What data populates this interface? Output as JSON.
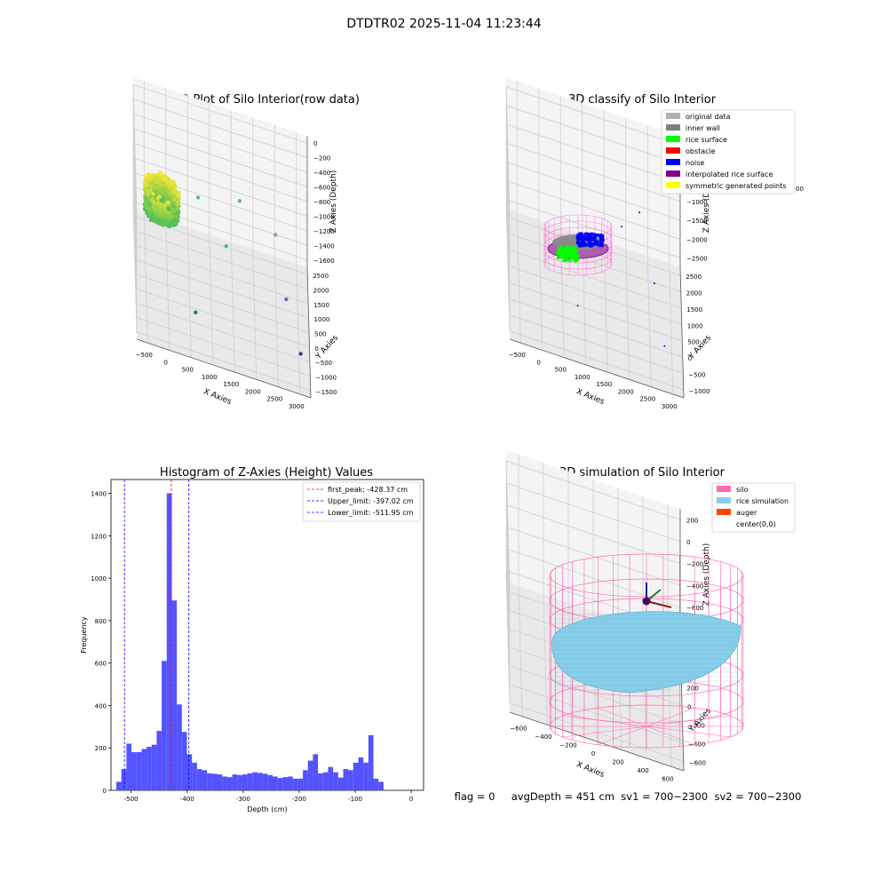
{
  "suptitle": "DTDTR02 2025-11-04 11:23:44",
  "status_text": "flag = 0     avgDepth = 451 cm  sv1 = 700~2300  sv2 = 700~2300",
  "colors": {
    "pane": "#f2f2f2",
    "grid": "#cfcfcf",
    "rice_surface": "#00ff00",
    "inner_wall": "#808080",
    "noise": "#0000ff",
    "interpolated": "#800080",
    "obstacle": "#ff0000",
    "original": "#b0b0b0",
    "symmetric": "#ffff00",
    "hist_bar": "#4a4aff",
    "silo": "#ff69b4",
    "rice_sim": "#87ceeb",
    "auger": "#ff4500"
  },
  "chart_data": [
    {
      "type": "scatter",
      "projection": "3d",
      "title": "3D Plot of Silo Interior(row data)",
      "xlabel": "X Axies",
      "ylabel": "Y Axies",
      "zlabel": "Z Axies (Depth)",
      "x_ticks": [
        "−500",
        "0",
        "500",
        "1000",
        "1500",
        "2000",
        "2500",
        "3000"
      ],
      "y_ticks": [
        "−1500",
        "−1000",
        "−500",
        "0",
        "500",
        "1000",
        "1500",
        "2000",
        "2500"
      ],
      "z_ticks": [
        "0",
        "−200",
        "−400",
        "−600",
        "−800",
        "−1000",
        "−1200",
        "−1400",
        "−1600"
      ],
      "xlim": [
        -600,
        3200
      ],
      "ylim": [
        -1600,
        2700
      ],
      "zlim": [
        -1700,
        50
      ],
      "cluster": {
        "x_range": [
          -400,
          350
        ],
        "y_range": [
          -450,
          450
        ],
        "z_range": [
          -560,
          -200
        ]
      },
      "outliers": [
        {
          "x": 800,
          "y": 1800,
          "z": -900,
          "color": "#5fb89a"
        },
        {
          "x": 1700,
          "y": 1400,
          "z": -600,
          "color": "#58b6a0"
        },
        {
          "x": 2500,
          "y": 2300,
          "z": -1250,
          "color": "#7aa9b6"
        },
        {
          "x": 1400,
          "y": 1000,
          "z": -1100,
          "color": "#4db3a5"
        },
        {
          "x": 700,
          "y": -800,
          "z": -1400,
          "color": "#2f6f8c"
        },
        {
          "x": 2700,
          "y": 400,
          "z": -1300,
          "color": "#6b6fb0"
        },
        {
          "x": 3000,
          "y": -500,
          "z": -1600,
          "color": "#3b3f86"
        }
      ],
      "grid": true
    },
    {
      "type": "scatter",
      "projection": "3d",
      "title": "3D classify of Silo Interior",
      "xlabel": "X Axies",
      "ylabel": "Y Axies",
      "zlabel": "Z Axies (Depth)",
      "x_ticks": [
        "−500",
        "0",
        "500",
        "1000",
        "1500",
        "2000",
        "2500",
        "3000"
      ],
      "y_ticks": [
        "−1000",
        "−500",
        "0",
        "500",
        "1000",
        "1500",
        "2000",
        "2500"
      ],
      "z_ticks": [
        "500",
        "0",
        "−500",
        "−1000",
        "−1500",
        "−2000",
        "−2500"
      ],
      "z_ticks_partial": [
        "00"
      ],
      "xlim": [
        -600,
        3200
      ],
      "ylim": [
        -1100,
        2700
      ],
      "zlim": [
        -2700,
        900
      ],
      "legend": [
        {
          "label": "original data",
          "color": "#b0b0b0"
        },
        {
          "label": "inner wall",
          "color": "#808080"
        },
        {
          "label": "rice surface",
          "color": "#00ff00"
        },
        {
          "label": "obstacle",
          "color": "#ff0000"
        },
        {
          "label": "noise",
          "color": "#0000ff"
        },
        {
          "label": "interpolated rice surface",
          "color": "#800080"
        },
        {
          "label": "symmetric generated points",
          "color": "#ffff00"
        }
      ],
      "legend_loc": "upper right",
      "noise_points": [
        {
          "x": 2300,
          "y": 2300,
          "z": -1200
        },
        {
          "x": 1900,
          "y": 1600,
          "z": -1100
        },
        {
          "x": 2600,
          "y": 900,
          "z": -1700
        },
        {
          "x": 900,
          "y": -300,
          "z": -1900
        },
        {
          "x": 2800,
          "y": -200,
          "z": -2300
        }
      ],
      "grid": true
    },
    {
      "type": "bar",
      "title": "Histogram of Z-Axies (Height) Values",
      "xlabel": "Depth (cm)",
      "ylabel": "Frequency",
      "xlim": [
        -536,
        22
      ],
      "ylim": [
        0,
        1465
      ],
      "x_ticks": [
        -500,
        -400,
        -300,
        -200,
        -100,
        0
      ],
      "y_ticks": [
        0,
        200,
        400,
        600,
        800,
        1000,
        1200,
        1400
      ],
      "bin_start": -526.5,
      "bin_width": 9.0,
      "values": [
        40,
        100,
        220,
        180,
        180,
        195,
        205,
        215,
        280,
        610,
        1400,
        895,
        405,
        275,
        170,
        130,
        100,
        95,
        80,
        78,
        75,
        65,
        62,
        75,
        72,
        75,
        80,
        85,
        82,
        78,
        72,
        65,
        58,
        62,
        65,
        55,
        55,
        95,
        140,
        170,
        80,
        85,
        110,
        85,
        60,
        100,
        95,
        130,
        155,
        130,
        260,
        55,
        40
      ],
      "vlines": [
        {
          "x": -428.37,
          "color": "#ff0000",
          "label": "first_peak: -428.37 cm"
        },
        {
          "x": -397.02,
          "color": "#0000ff",
          "label": "Upper_limit: -397.02 cm"
        },
        {
          "x": -511.95,
          "color": "#0000ff",
          "label": "Lower_limit: -511.95 cm"
        }
      ],
      "legend_loc": "upper right"
    },
    {
      "type": "scatter",
      "projection": "3d",
      "title": "3D simulation of Silo Interior",
      "xlabel": "X Axies",
      "ylabel": "Y Axies",
      "zlabel": "Z Axies (Depth)",
      "x_ticks": [
        "−600",
        "−400",
        "−200",
        "0",
        "200",
        "400",
        "600"
      ],
      "y_ticks": [
        "−600",
        "−400",
        "−200",
        "0",
        "200",
        "400",
        "600"
      ],
      "z_ticks": [
        "200",
        "0",
        "−200",
        "−400",
        "−600",
        "−800"
      ],
      "xlim": [
        -700,
        700
      ],
      "ylim": [
        -700,
        700
      ],
      "zlim": [
        -950,
        300
      ],
      "silo_radius": 650,
      "silo_top": 200,
      "silo_bottom": -900,
      "rice_surface_depth": -451,
      "legend": [
        {
          "label": "silo",
          "color": "#ff69b4"
        },
        {
          "label": "rice simulation",
          "color": "#87ceeb"
        },
        {
          "label": "auger",
          "color": "#ff4500"
        },
        {
          "label": "center(0,0)",
          "color": ""
        }
      ],
      "legend_loc": "upper right",
      "grid": true
    }
  ]
}
